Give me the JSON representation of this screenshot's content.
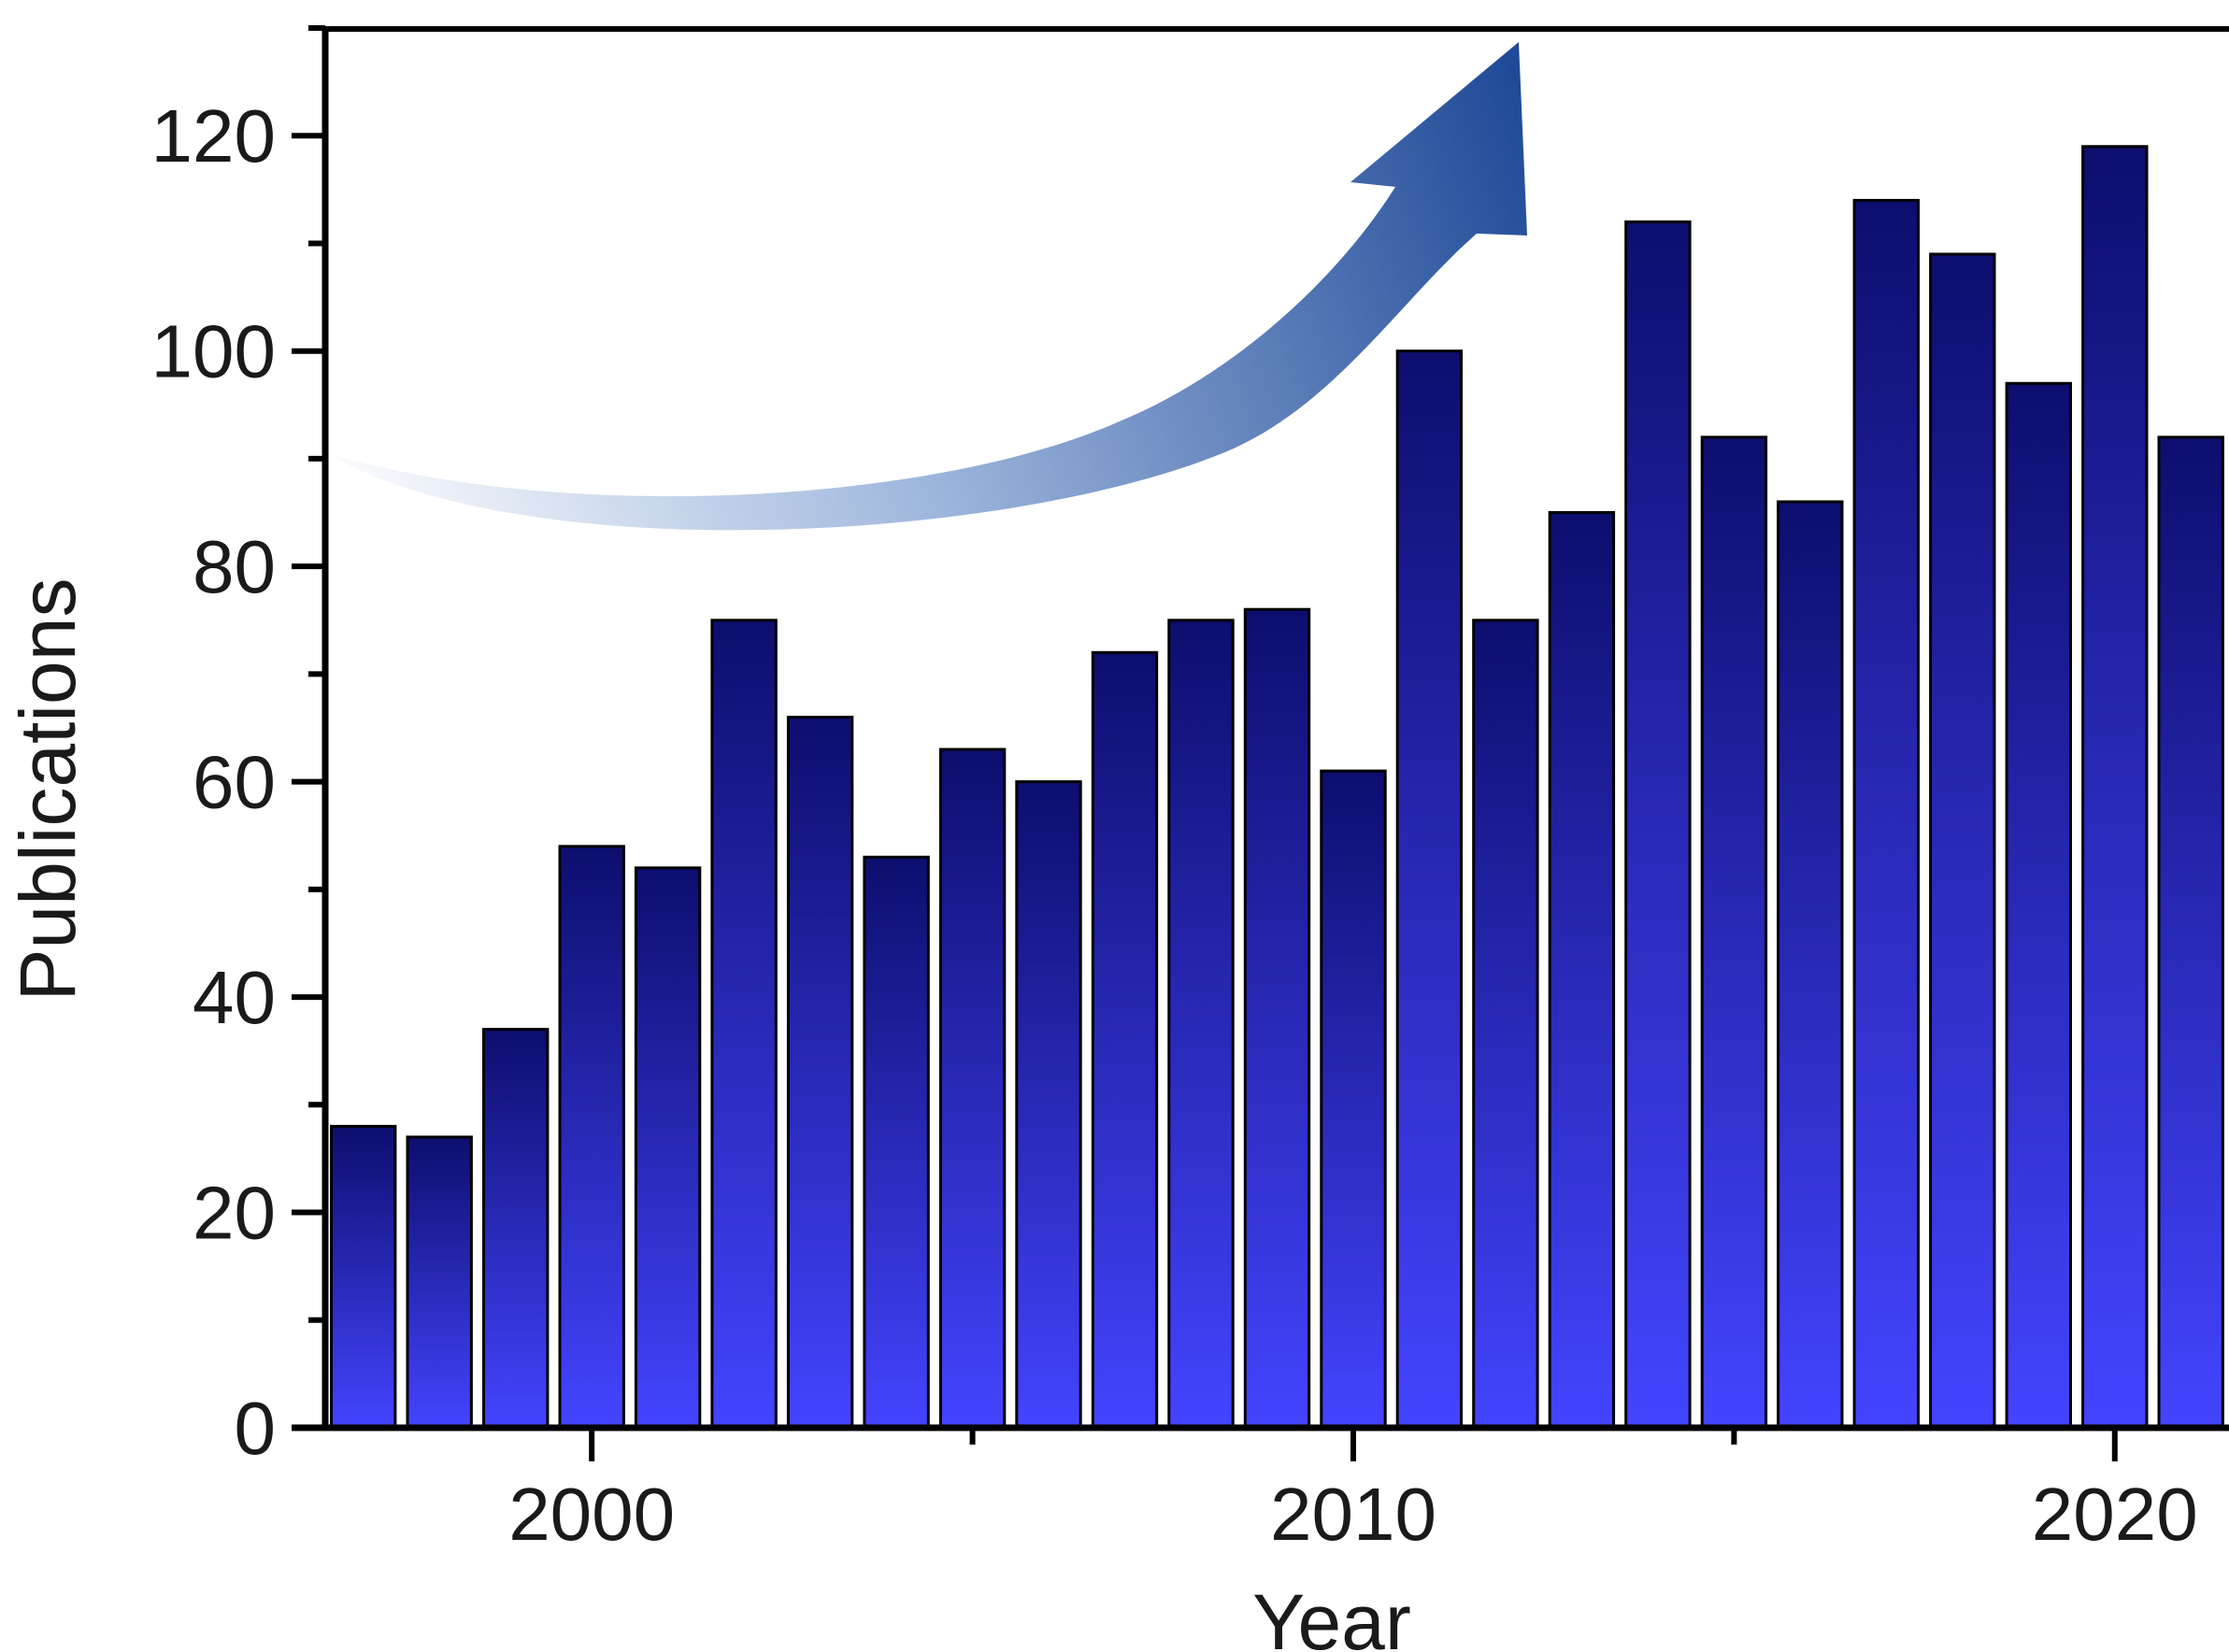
{
  "chart_data": {
    "type": "bar",
    "xlabel": "Year",
    "ylabel": "Publications",
    "ylim": [
      0,
      130
    ],
    "xlim": [
      1996.5,
      2021.5
    ],
    "yticks": [
      0,
      20,
      40,
      60,
      80,
      100,
      120
    ],
    "xticks": [
      2000,
      2010,
      2020
    ],
    "grid": false,
    "x": [
      1997,
      1998,
      1999,
      2000,
      2001,
      2002,
      2003,
      2004,
      2005,
      2006,
      2007,
      2008,
      2009,
      2010,
      2011,
      2012,
      2013,
      2014,
      2015,
      2016,
      2017,
      2018,
      2019,
      2020,
      2021
    ],
    "values": [
      28,
      27,
      37,
      54,
      52,
      75,
      66,
      53,
      63,
      60,
      72,
      75,
      76,
      61,
      100,
      75,
      85,
      112,
      92,
      86,
      114,
      109,
      97,
      119,
      92
    ],
    "bar_color_top": "#0d0e6e",
    "bar_color_bottom": "#4444ff",
    "annotation": {
      "type": "trend-arrow",
      "color_start": "#ffffff",
      "color_end": "#1f4a98"
    }
  }
}
